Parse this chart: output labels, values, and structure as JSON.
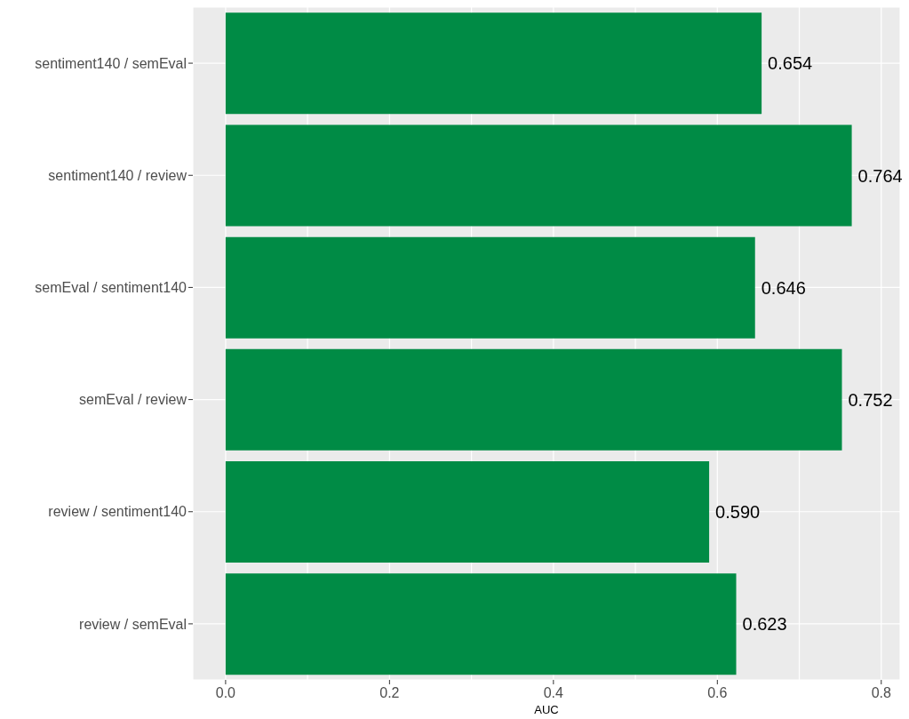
{
  "chart_data": {
    "type": "bar",
    "orientation": "horizontal",
    "xlabel": "AUC",
    "categories": [
      "sentiment140 / semEval",
      "sentiment140 / review",
      "semEval / sentiment140",
      "semEval / review",
      "review / sentiment140",
      "review / semEval"
    ],
    "values": [
      0.654,
      0.764,
      0.646,
      0.752,
      0.59,
      0.623
    ],
    "value_labels": [
      "0.654",
      "0.764",
      "0.646",
      "0.752",
      "0.590",
      "0.623"
    ],
    "color": "#008b45",
    "xlim": [
      -0.04,
      0.823
    ],
    "xticks": [
      {
        "value": 0,
        "label": "0.0"
      },
      {
        "value": 0.1,
        "label": null
      },
      {
        "value": 0.2,
        "label": "0.2"
      },
      {
        "value": 0.3,
        "label": null
      },
      {
        "value": 0.4,
        "label": "0.4"
      },
      {
        "value": 0.5,
        "label": null
      },
      {
        "value": 0.6,
        "label": "0.6"
      },
      {
        "value": 0.7,
        "label": null
      },
      {
        "value": 0.8,
        "label": "0.8"
      }
    ],
    "grid": true,
    "legend": false
  }
}
